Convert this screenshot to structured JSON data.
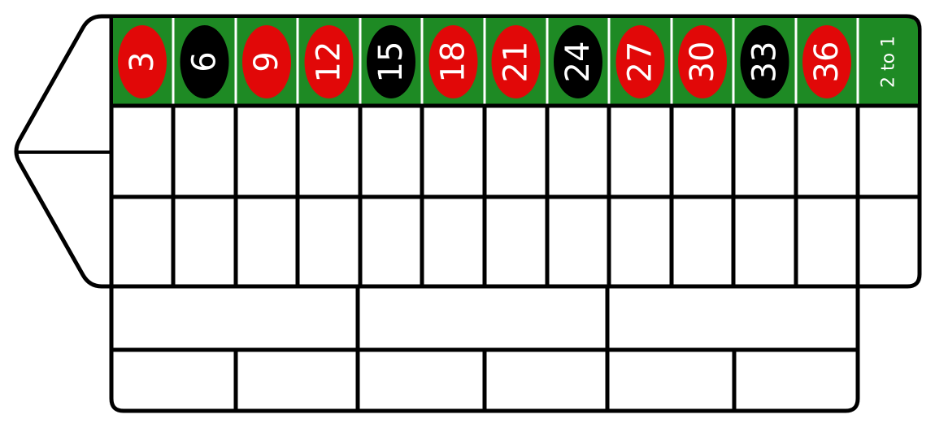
{
  "colors": {
    "felt": "#1e8a24",
    "red": "#e10808",
    "black": "#000000",
    "line": "#000000",
    "divider": "#ffffff"
  },
  "top_row": {
    "numbers": [
      {
        "n": "3",
        "color": "red"
      },
      {
        "n": "6",
        "color": "black"
      },
      {
        "n": "9",
        "color": "red"
      },
      {
        "n": "12",
        "color": "red"
      },
      {
        "n": "15",
        "color": "black"
      },
      {
        "n": "18",
        "color": "red"
      },
      {
        "n": "21",
        "color": "red"
      },
      {
        "n": "24",
        "color": "black"
      },
      {
        "n": "27",
        "color": "red"
      },
      {
        "n": "30",
        "color": "red"
      },
      {
        "n": "33",
        "color": "black"
      },
      {
        "n": "36",
        "color": "red"
      }
    ],
    "column_bet_label": "2 to 1"
  }
}
